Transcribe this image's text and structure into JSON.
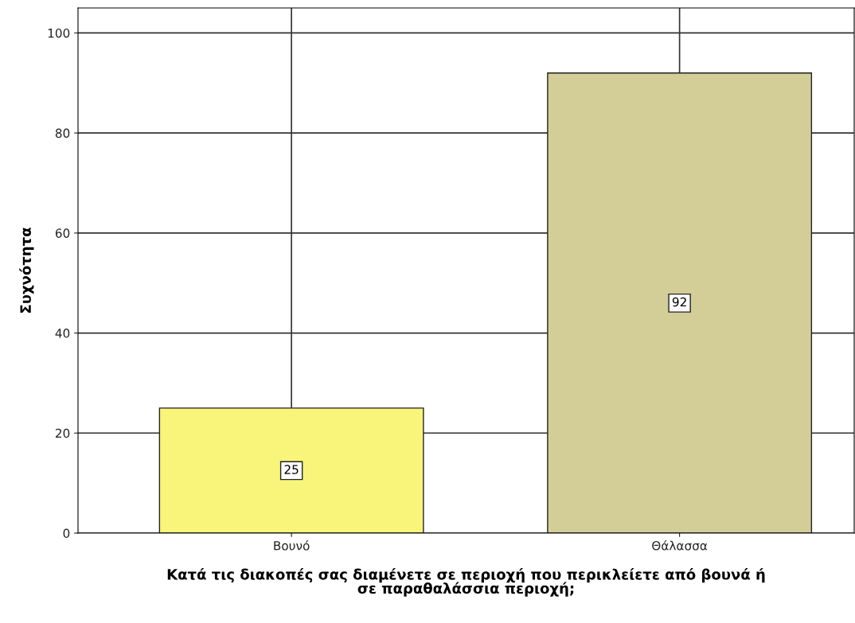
{
  "chart_data": {
    "type": "bar",
    "xlabel": "Κατά τις διακοπές σας διαμένετε σε περιοχή που περικλείετε από βουνά ή\nσε παραθαλάσσια περιοχή;",
    "ylabel": "Συχνότητα",
    "categories": [
      "Βουνό",
      "Θάλασσα"
    ],
    "values": [
      25,
      92
    ],
    "colors": [
      "#f8f57a",
      "#d3cd98"
    ],
    "ylim": [
      0,
      105
    ],
    "yticks": [
      0,
      20,
      40,
      60,
      80,
      100
    ],
    "grid": true,
    "data_labels": true
  }
}
